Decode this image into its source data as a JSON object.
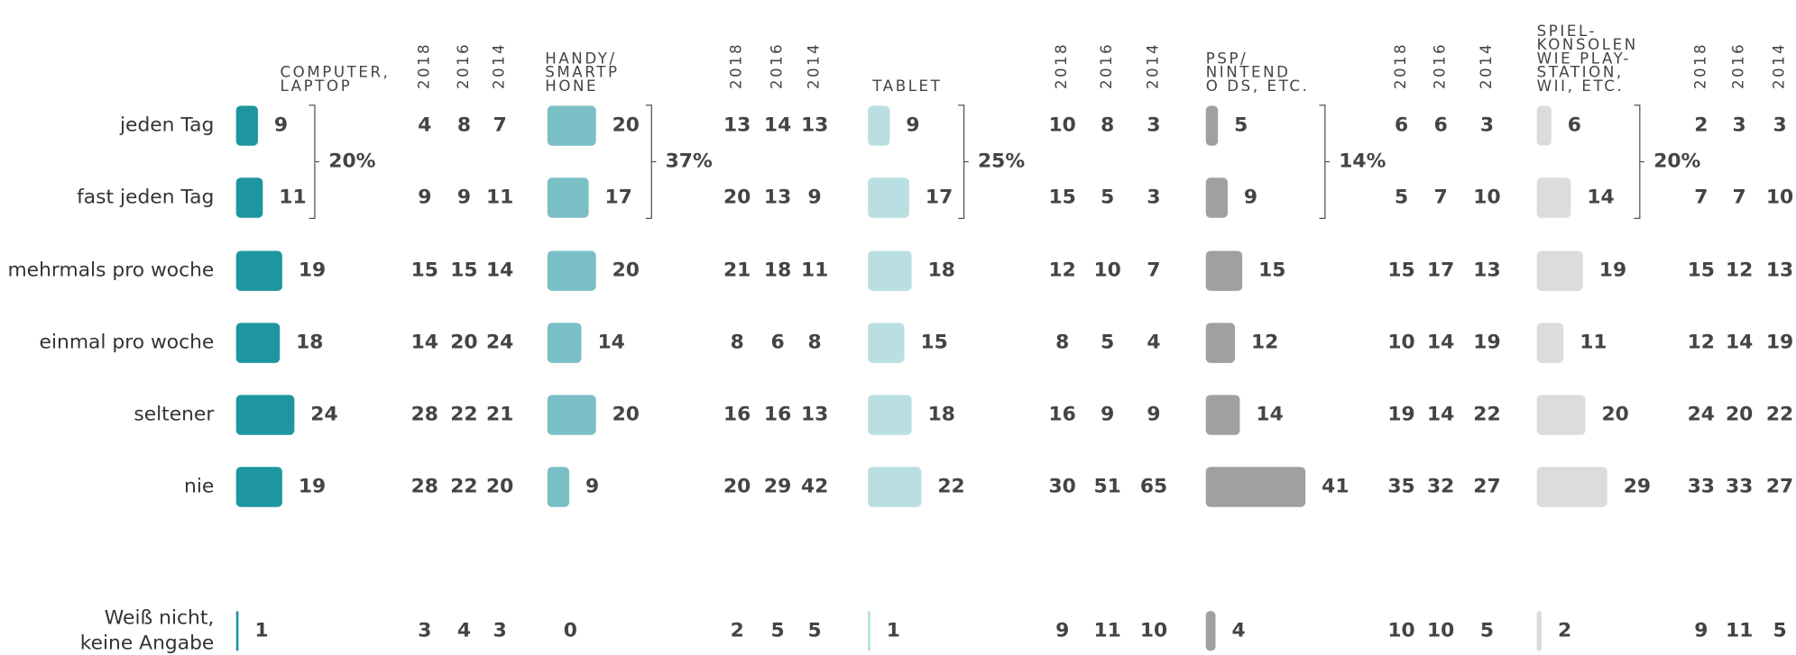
{
  "rows": [
    "jeden Tag",
    "fast jeden Tag",
    "mehrmals pro woche",
    "einmal pro woche",
    "seltener",
    "nie",
    [
      "Weiß nicht,",
      "keine Angabe"
    ]
  ],
  "years": [
    "2018",
    "2016",
    "2014"
  ],
  "groups": [
    {
      "title": [
        "COMPUTER,",
        "LAPTOP"
      ],
      "color": "#1e96a0",
      "bracket": "20%",
      "values": [
        9,
        11,
        19,
        18,
        24,
        19,
        1
      ],
      "history": [
        [
          4,
          9,
          15,
          14,
          28,
          28,
          3
        ],
        [
          8,
          9,
          15,
          20,
          22,
          22,
          4
        ],
        [
          7,
          11,
          14,
          24,
          21,
          20,
          3
        ]
      ]
    },
    {
      "title": [
        "HANDY/",
        "SMARTP",
        "HONE"
      ],
      "color": "#7abfc5",
      "bracket": "37%",
      "values": [
        20,
        17,
        20,
        14,
        20,
        9,
        0
      ],
      "history": [
        [
          13,
          20,
          21,
          8,
          16,
          20,
          2
        ],
        [
          14,
          13,
          18,
          6,
          16,
          29,
          5
        ],
        [
          13,
          9,
          11,
          8,
          13,
          42,
          5
        ]
      ]
    },
    {
      "title": [
        "TABLET"
      ],
      "color": "#b9dfe2",
      "bracket": "25%",
      "values": [
        9,
        17,
        18,
        15,
        18,
        22,
        1
      ],
      "history": [
        [
          10,
          15,
          12,
          8,
          16,
          30,
          9
        ],
        [
          8,
          5,
          10,
          5,
          9,
          51,
          11
        ],
        [
          3,
          3,
          7,
          4,
          9,
          65,
          10
        ]
      ]
    },
    {
      "title": [
        "PSP/",
        "NINTEND",
        "O DS, ETC."
      ],
      "color": "#a0a0a0",
      "bracket": "14%",
      "values": [
        5,
        9,
        15,
        12,
        14,
        41,
        4
      ],
      "history": [
        [
          6,
          5,
          15,
          10,
          19,
          35,
          10
        ],
        [
          6,
          7,
          17,
          14,
          14,
          32,
          10
        ],
        [
          3,
          10,
          13,
          19,
          22,
          27,
          5
        ]
      ]
    },
    {
      "title": [
        "SPIEL-",
        "KONSOLEN",
        "WIE PLAY-",
        "STATION,",
        "WII, ETC."
      ],
      "color": "#dcdcdc",
      "bracket": "20%",
      "values": [
        6,
        14,
        19,
        11,
        20,
        29,
        2
      ],
      "history": [
        [
          2,
          7,
          15,
          12,
          24,
          33,
          9
        ],
        [
          3,
          7,
          12,
          14,
          20,
          33,
          11
        ],
        [
          3,
          10,
          13,
          19,
          22,
          27,
          5
        ]
      ]
    }
  ]
}
